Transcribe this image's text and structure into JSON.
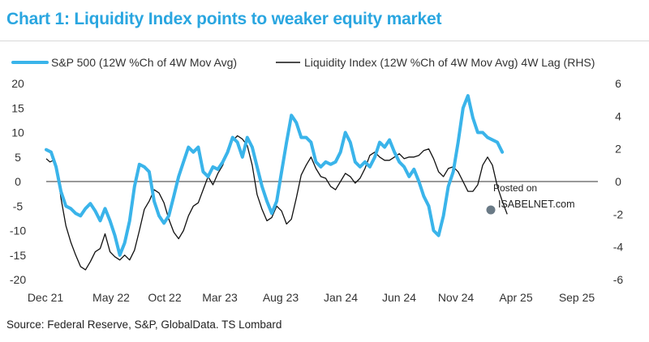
{
  "title": "Chart 1: Liquidity Index points to weaker equity market",
  "source": "Source: Federal Reserve, S&P, GlobalData. TS Lombard",
  "watermark": {
    "line1": "Posted on",
    "line2": "ISABELNET.com"
  },
  "colors": {
    "title": "#2aa6e0",
    "sp500": "#3ab4ea",
    "liquidity": "#111111",
    "axis": "#333333"
  },
  "chart_data": {
    "type": "line",
    "x_tick_labels": [
      "Dec 21",
      "May 22",
      "Oct 22",
      "Mar 23",
      "Aug 23",
      "Jan 24",
      "Jun 24",
      "Nov 24",
      "Apr 25",
      "Sep 25"
    ],
    "x_range": [
      0,
      45
    ],
    "ylim_left": [
      -20,
      20
    ],
    "yticks_left": [
      -20,
      -15,
      -10,
      -5,
      0,
      5,
      10,
      15,
      20
    ],
    "ylim_right": [
      -6,
      6
    ],
    "yticks_right": [
      -6,
      -4,
      -2,
      0,
      2,
      4,
      6
    ],
    "legend_position": "top",
    "grid": false,
    "series": [
      {
        "name": "S&P 500 (12W %Ch of 4W Mov Avg)",
        "axis": "left",
        "points": [
          [
            0,
            6.5
          ],
          [
            0.4,
            6
          ],
          [
            0.8,
            3
          ],
          [
            1.2,
            -2
          ],
          [
            1.6,
            -5
          ],
          [
            2,
            -5.5
          ],
          [
            2.4,
            -6.5
          ],
          [
            2.8,
            -7
          ],
          [
            3.2,
            -5.5
          ],
          [
            3.6,
            -4.5
          ],
          [
            4,
            -6
          ],
          [
            4.4,
            -8
          ],
          [
            4.8,
            -5.5
          ],
          [
            5.2,
            -8
          ],
          [
            5.6,
            -11
          ],
          [
            6,
            -15
          ],
          [
            6.4,
            -12.5
          ],
          [
            6.8,
            -8
          ],
          [
            7.2,
            -1
          ],
          [
            7.6,
            3.5
          ],
          [
            8,
            3
          ],
          [
            8.4,
            2
          ],
          [
            8.8,
            -4
          ],
          [
            9.2,
            -7
          ],
          [
            9.6,
            -8.5
          ],
          [
            10,
            -7
          ],
          [
            10.4,
            -3
          ],
          [
            10.8,
            1
          ],
          [
            11.2,
            4
          ],
          [
            11.6,
            7
          ],
          [
            12,
            6
          ],
          [
            12.4,
            7
          ],
          [
            12.8,
            2
          ],
          [
            13.2,
            1
          ],
          [
            13.6,
            3
          ],
          [
            14,
            2.5
          ],
          [
            14.4,
            4
          ],
          [
            14.8,
            6
          ],
          [
            15.2,
            9
          ],
          [
            15.6,
            8
          ],
          [
            16,
            5
          ],
          [
            16.4,
            9
          ],
          [
            16.8,
            7
          ],
          [
            17.2,
            3
          ],
          [
            17.6,
            -1
          ],
          [
            18,
            -4
          ],
          [
            18.4,
            -6.5
          ],
          [
            18.8,
            -4
          ],
          [
            19.2,
            2
          ],
          [
            19.6,
            8
          ],
          [
            20,
            13.5
          ],
          [
            20.4,
            12
          ],
          [
            20.8,
            9
          ],
          [
            21.2,
            9
          ],
          [
            21.6,
            8
          ],
          [
            22,
            4
          ],
          [
            22.4,
            3
          ],
          [
            22.8,
            4
          ],
          [
            23.2,
            3.5
          ],
          [
            23.6,
            4
          ],
          [
            24,
            6
          ],
          [
            24.4,
            10
          ],
          [
            24.8,
            8
          ],
          [
            25.2,
            4
          ],
          [
            25.6,
            3
          ],
          [
            26,
            4
          ],
          [
            26.4,
            3
          ],
          [
            26.8,
            5
          ],
          [
            27.2,
            8
          ],
          [
            27.6,
            7
          ],
          [
            28,
            8.5
          ],
          [
            28.4,
            6
          ],
          [
            28.8,
            4
          ],
          [
            29.2,
            3
          ],
          [
            29.6,
            1
          ],
          [
            30,
            2.5
          ],
          [
            30.4,
            0
          ],
          [
            30.8,
            -3
          ],
          [
            31.2,
            -5
          ],
          [
            31.6,
            -10
          ],
          [
            32,
            -11
          ],
          [
            32.4,
            -7
          ],
          [
            32.8,
            -1
          ],
          [
            33.2,
            2
          ],
          [
            33.6,
            8
          ],
          [
            34,
            15
          ],
          [
            34.4,
            17.5
          ],
          [
            34.8,
            13
          ],
          [
            35.2,
            10
          ],
          [
            35.6,
            10
          ],
          [
            36,
            9
          ],
          [
            36.4,
            8.5
          ],
          [
            36.8,
            8
          ],
          [
            37.2,
            6
          ]
        ]
      },
      {
        "name": "Liquidity Index (12W %Ch of 4W Mov Avg) 4W Lag (RHS)",
        "axis": "right",
        "points": [
          [
            0,
            1.4
          ],
          [
            0.3,
            1.2
          ],
          [
            0.6,
            1.3
          ],
          [
            0.9,
            0.7
          ],
          [
            1.2,
            -1
          ],
          [
            1.6,
            -2.7
          ],
          [
            2,
            -3.7
          ],
          [
            2.4,
            -4.5
          ],
          [
            2.8,
            -5.2
          ],
          [
            3.2,
            -5.4
          ],
          [
            3.6,
            -4.9
          ],
          [
            4,
            -4.3
          ],
          [
            4.4,
            -4.1
          ],
          [
            4.8,
            -3.2
          ],
          [
            5.2,
            -4.3
          ],
          [
            5.6,
            -4.6
          ],
          [
            6,
            -4.8
          ],
          [
            6.4,
            -4.5
          ],
          [
            6.8,
            -4.8
          ],
          [
            7.2,
            -4.2
          ],
          [
            7.6,
            -3
          ],
          [
            8,
            -1.7
          ],
          [
            8.4,
            -1.2
          ],
          [
            8.8,
            -0.5
          ],
          [
            9.2,
            -0.7
          ],
          [
            9.6,
            -1.3
          ],
          [
            10,
            -2.3
          ],
          [
            10.4,
            -3.1
          ],
          [
            10.8,
            -3.5
          ],
          [
            11.2,
            -3
          ],
          [
            11.6,
            -2.1
          ],
          [
            12,
            -1.5
          ],
          [
            12.4,
            -1.3
          ],
          [
            12.8,
            -0.5
          ],
          [
            13.2,
            0.3
          ],
          [
            13.6,
            -0.2
          ],
          [
            14,
            0.5
          ],
          [
            14.4,
            1
          ],
          [
            14.8,
            2
          ],
          [
            15.2,
            2.5
          ],
          [
            15.6,
            2.8
          ],
          [
            16,
            2.6
          ],
          [
            16.4,
            2.2
          ],
          [
            16.8,
            1
          ],
          [
            17.2,
            -0.8
          ],
          [
            17.6,
            -1.7
          ],
          [
            18,
            -2.4
          ],
          [
            18.4,
            -2.2
          ],
          [
            18.8,
            -1.5
          ],
          [
            19.2,
            -1.8
          ],
          [
            19.6,
            -2.6
          ],
          [
            20,
            -2.3
          ],
          [
            20.4,
            -1
          ],
          [
            20.8,
            0.4
          ],
          [
            21.2,
            1
          ],
          [
            21.6,
            1.5
          ],
          [
            22,
            0.8
          ],
          [
            22.4,
            0.3
          ],
          [
            22.8,
            0.2
          ],
          [
            23.2,
            -0.3
          ],
          [
            23.6,
            -0.5
          ],
          [
            24,
            0
          ],
          [
            24.4,
            0.5
          ],
          [
            24.8,
            0.3
          ],
          [
            25.2,
            -0.1
          ],
          [
            25.6,
            0.2
          ],
          [
            26,
            0.8
          ],
          [
            26.4,
            1.6
          ],
          [
            26.8,
            1.8
          ],
          [
            27.2,
            1.5
          ],
          [
            27.6,
            1.3
          ],
          [
            28,
            1.3
          ],
          [
            28.4,
            1.5
          ],
          [
            28.8,
            1.7
          ],
          [
            29.2,
            1.4
          ],
          [
            29.6,
            1.5
          ],
          [
            30,
            1.5
          ],
          [
            30.4,
            1.6
          ],
          [
            30.8,
            1.9
          ],
          [
            31.2,
            2
          ],
          [
            31.6,
            1.4
          ],
          [
            32,
            0.6
          ],
          [
            32.4,
            0.3
          ],
          [
            32.8,
            0.8
          ],
          [
            33.2,
            0.9
          ],
          [
            33.6,
            0.6
          ],
          [
            34,
            0
          ],
          [
            34.4,
            -0.6
          ],
          [
            34.8,
            -0.6
          ],
          [
            35.2,
            -0.2
          ],
          [
            35.6,
            1
          ],
          [
            36,
            1.5
          ],
          [
            36.4,
            1
          ],
          [
            36.8,
            -0.3
          ],
          [
            37.2,
            -1.2
          ],
          [
            37.6,
            -2
          ]
        ]
      }
    ]
  }
}
